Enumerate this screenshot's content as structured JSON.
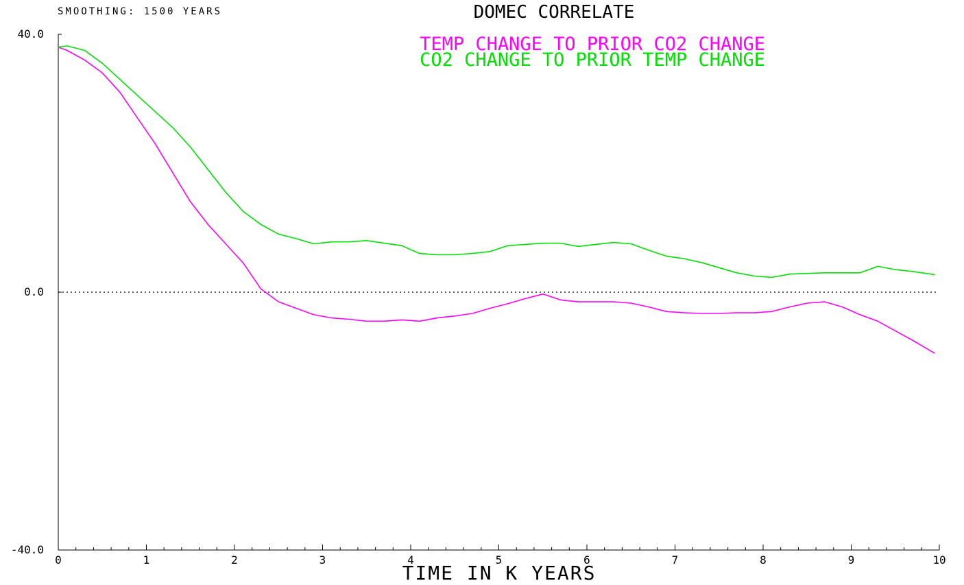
{
  "chart_data": {
    "type": "line",
    "title": "DOMEC CORRELATE",
    "subtitle": "SMOOTHING: 1500 YEARS",
    "xlabel": "TIME IN K YEARS",
    "ylabel": "",
    "xlim": [
      0,
      10
    ],
    "ylim": [
      -40,
      40
    ],
    "x_ticks": [
      "0",
      "1",
      "2",
      "3",
      "4",
      "5",
      "6",
      "7",
      "8",
      "9",
      "10"
    ],
    "y_ticks": [
      "40.0",
      "0.0",
      "-40.0"
    ],
    "zero_line": true,
    "grid": false,
    "legend_position": "top-center",
    "series": [
      {
        "name": "TEMP CHANGE TO PRIOR  CO2 CHANGE",
        "color": "#ff00ff",
        "x": [
          0,
          0.1,
          0.3,
          0.5,
          0.7,
          0.9,
          1.1,
          1.3,
          1.5,
          1.7,
          1.9,
          2.1,
          2.3,
          2.5,
          2.7,
          2.9,
          3.1,
          3.3,
          3.5,
          3.7,
          3.9,
          4.1,
          4.3,
          4.5,
          4.7,
          4.9,
          5.1,
          5.3,
          5.5,
          5.7,
          5.9,
          6.1,
          6.3,
          6.5,
          6.7,
          6.9,
          7.1,
          7.3,
          7.5,
          7.7,
          7.9,
          8.1,
          8.3,
          8.5,
          8.7,
          8.9,
          9.1,
          9.3,
          9.5,
          9.7,
          9.95
        ],
        "values": [
          38,
          37.5,
          36,
          34,
          31,
          27,
          23,
          18.5,
          14,
          10.5,
          7.5,
          4.5,
          0.5,
          -1.5,
          -2.5,
          -3.5,
          -4,
          -4.2,
          -4.5,
          -4.5,
          -4.3,
          -4.5,
          -4,
          -3.7,
          -3.3,
          -2.5,
          -1.8,
          -1.0,
          -0.3,
          -1.2,
          -1.5,
          -1.5,
          -1.5,
          -1.7,
          -2.3,
          -3.0,
          -3.2,
          -3.3,
          -3.3,
          -3.2,
          -3.2,
          -3.0,
          -2.3,
          -1.7,
          -1.5,
          -2.3,
          -3.5,
          -4.5,
          -6.0,
          -7.5,
          -9.5
        ]
      },
      {
        "name": "CO2 CHANGE TO PRIOR TEMP CHANGE",
        "color": "#00e000",
        "x": [
          0,
          0.1,
          0.3,
          0.5,
          0.7,
          0.9,
          1.1,
          1.3,
          1.5,
          1.7,
          1.9,
          2.1,
          2.3,
          2.5,
          2.7,
          2.9,
          3.1,
          3.3,
          3.5,
          3.7,
          3.9,
          4.1,
          4.3,
          4.5,
          4.7,
          4.9,
          5.1,
          5.3,
          5.5,
          5.7,
          5.9,
          6.1,
          6.3,
          6.5,
          6.7,
          6.9,
          7.1,
          7.3,
          7.5,
          7.7,
          7.9,
          8.1,
          8.3,
          8.5,
          8.7,
          8.9,
          9.1,
          9.3,
          9.5,
          9.7,
          9.95
        ],
        "values": [
          38,
          38.2,
          37.5,
          35.5,
          33,
          30.5,
          28,
          25.5,
          22.5,
          19,
          15.5,
          12.5,
          10.5,
          9.0,
          8.3,
          7.5,
          7.8,
          7.8,
          8.0,
          7.6,
          7.2,
          6.0,
          5.8,
          5.8,
          6.0,
          6.3,
          7.2,
          7.4,
          7.6,
          7.6,
          7.1,
          7.4,
          7.7,
          7.5,
          6.5,
          5.6,
          5.2,
          4.6,
          3.8,
          3.0,
          2.5,
          2.3,
          2.8,
          2.9,
          3.0,
          3.0,
          3.0,
          4.0,
          3.5,
          3.2,
          2.7
        ]
      }
    ]
  }
}
